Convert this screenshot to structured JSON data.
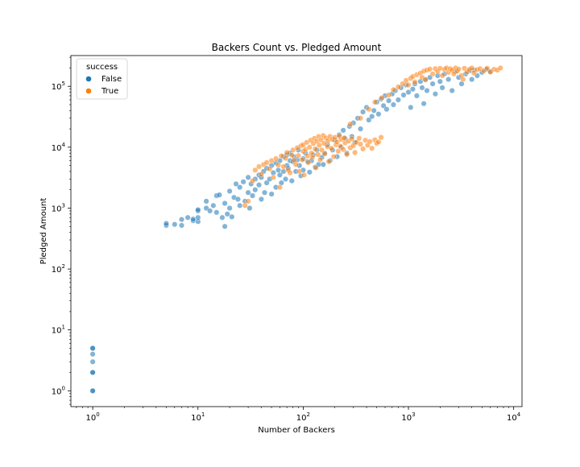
{
  "chart_data": {
    "type": "scatter",
    "title": "Backers Count vs. Pledged Amount",
    "xlabel": "Number of Backers",
    "ylabel": "Pledged Amount",
    "xscale": "log",
    "yscale": "log",
    "xlim": [
      0.62,
      12000
    ],
    "ylim": [
      0.55,
      320000
    ],
    "grid": false,
    "x_ticks": [
      {
        "value": 1,
        "base": "10",
        "exp": "0"
      },
      {
        "value": 10,
        "base": "10",
        "exp": "1"
      },
      {
        "value": 100,
        "base": "10",
        "exp": "2"
      },
      {
        "value": 1000,
        "base": "10",
        "exp": "3"
      },
      {
        "value": 10000,
        "base": "10",
        "exp": "4"
      }
    ],
    "y_ticks": [
      {
        "value": 1,
        "base": "10",
        "exp": "0"
      },
      {
        "value": 10,
        "base": "10",
        "exp": "1"
      },
      {
        "value": 100,
        "base": "10",
        "exp": "2"
      },
      {
        "value": 1000,
        "base": "10",
        "exp": "3"
      },
      {
        "value": 10000,
        "base": "10",
        "exp": "4"
      },
      {
        "value": 100000,
        "base": "10",
        "exp": "5"
      }
    ],
    "legend": {
      "title": "success",
      "placement": "top-left",
      "entries": [
        {
          "label": "False",
          "color": "#1f77b4"
        },
        {
          "label": "True",
          "color": "#ff7f0e"
        }
      ]
    },
    "series": [
      {
        "name": "False",
        "color": "#1f77b4",
        "points": [
          [
            1,
            1
          ],
          [
            1,
            1
          ],
          [
            1,
            2
          ],
          [
            1,
            2
          ],
          [
            1,
            3
          ],
          [
            1,
            4
          ],
          [
            1,
            5
          ],
          [
            1,
            5
          ],
          [
            5,
            520
          ],
          [
            5,
            560
          ],
          [
            6,
            540
          ],
          [
            7,
            520
          ],
          [
            7,
            650
          ],
          [
            8,
            700
          ],
          [
            9,
            620
          ],
          [
            9,
            660
          ],
          [
            10,
            900
          ],
          [
            10,
            940
          ],
          [
            10,
            600
          ],
          [
            10,
            700
          ],
          [
            12,
            1000
          ],
          [
            12,
            1300
          ],
          [
            13,
            900
          ],
          [
            14,
            1100
          ],
          [
            15,
            1600
          ],
          [
            15,
            850
          ],
          [
            16,
            1650
          ],
          [
            17,
            700
          ],
          [
            18,
            1200
          ],
          [
            18,
            500
          ],
          [
            19,
            800
          ],
          [
            20,
            1900
          ],
          [
            20,
            1000
          ],
          [
            21,
            720
          ],
          [
            22,
            1500
          ],
          [
            23,
            2500
          ],
          [
            24,
            1400
          ],
          [
            25,
            2200
          ],
          [
            25,
            1100
          ],
          [
            27,
            2700
          ],
          [
            28,
            1300
          ],
          [
            30,
            3200
          ],
          [
            30,
            1800
          ],
          [
            31,
            1000
          ],
          [
            32,
            2500
          ],
          [
            33,
            1600
          ],
          [
            35,
            3000
          ],
          [
            35,
            2000
          ],
          [
            38,
            3500
          ],
          [
            38,
            2400
          ],
          [
            40,
            3200
          ],
          [
            40,
            1400
          ],
          [
            42,
            4000
          ],
          [
            43,
            1800
          ],
          [
            45,
            4500
          ],
          [
            45,
            2600
          ],
          [
            48,
            3000
          ],
          [
            50,
            5000
          ],
          [
            50,
            1700
          ],
          [
            52,
            3800
          ],
          [
            55,
            5500
          ],
          [
            55,
            2200
          ],
          [
            58,
            4200
          ],
          [
            60,
            6000
          ],
          [
            60,
            3500
          ],
          [
            62,
            2600
          ],
          [
            65,
            7000
          ],
          [
            65,
            4000
          ],
          [
            68,
            3000
          ],
          [
            70,
            7500
          ],
          [
            70,
            5000
          ],
          [
            72,
            4500
          ],
          [
            75,
            8000
          ],
          [
            75,
            6000
          ],
          [
            78,
            2800
          ],
          [
            80,
            5800
          ],
          [
            82,
            7000
          ],
          [
            85,
            4000
          ],
          [
            88,
            6200
          ],
          [
            90,
            9000
          ],
          [
            92,
            5000
          ],
          [
            95,
            3400
          ],
          [
            100,
            6500
          ],
          [
            100,
            4200
          ],
          [
            105,
            8000
          ],
          [
            110,
            5800
          ],
          [
            115,
            3900
          ],
          [
            120,
            6000
          ],
          [
            125,
            7500
          ],
          [
            130,
            4700
          ],
          [
            135,
            9000
          ],
          [
            140,
            5200
          ],
          [
            150,
            6800
          ],
          [
            155,
            5200
          ],
          [
            160,
            8000
          ],
          [
            170,
            11000
          ],
          [
            180,
            6000
          ],
          [
            190,
            9000
          ],
          [
            200,
            13000
          ],
          [
            210,
            7000
          ],
          [
            220,
            16000
          ],
          [
            230,
            10000
          ],
          [
            240,
            19000
          ],
          [
            250,
            14000
          ],
          [
            260,
            8000
          ],
          [
            275,
            22000
          ],
          [
            290,
            15000
          ],
          [
            300,
            25000
          ],
          [
            310,
            12000
          ],
          [
            330,
            30000
          ],
          [
            350,
            20000
          ],
          [
            370,
            38000
          ],
          [
            400,
            45000
          ],
          [
            420,
            28000
          ],
          [
            450,
            32000
          ],
          [
            470,
            40000
          ],
          [
            500,
            55000
          ],
          [
            520,
            35000
          ],
          [
            550,
            62000
          ],
          [
            580,
            48000
          ],
          [
            600,
            70000
          ],
          [
            620,
            42000
          ],
          [
            650,
            58000
          ],
          [
            700,
            75000
          ],
          [
            720,
            50000
          ],
          [
            750,
            85000
          ],
          [
            800,
            60000
          ],
          [
            850,
            95000
          ],
          [
            900,
            72000
          ],
          [
            950,
            105000
          ],
          [
            1000,
            80000
          ],
          [
            1050,
            45000
          ],
          [
            1100,
            90000
          ],
          [
            1150,
            110000
          ],
          [
            1200,
            70000
          ],
          [
            1300,
            120000
          ],
          [
            1350,
            95000
          ],
          [
            1400,
            52000
          ],
          [
            1450,
            130000
          ],
          [
            1500,
            85000
          ],
          [
            1600,
            140000
          ],
          [
            1700,
            110000
          ],
          [
            1800,
            75000
          ],
          [
            1900,
            150000
          ],
          [
            2000,
            120000
          ],
          [
            2100,
            95000
          ],
          [
            2200,
            160000
          ],
          [
            2400,
            130000
          ],
          [
            2600,
            85000
          ],
          [
            2800,
            175000
          ],
          [
            3000,
            140000
          ],
          [
            3200,
            110000
          ],
          [
            3500,
            160000
          ],
          [
            3800,
            180000
          ],
          [
            4000,
            130000
          ],
          [
            4200,
            185000
          ],
          [
            4500,
            150000
          ],
          [
            5000,
            170000
          ],
          [
            5500,
            190000
          ],
          [
            6000,
            175000
          ]
        ]
      },
      {
        "name": "True",
        "color": "#ff7f0e",
        "points": [
          [
            28,
            1100
          ],
          [
            30,
            1300
          ],
          [
            33,
            2800
          ],
          [
            35,
            4200
          ],
          [
            38,
            4800
          ],
          [
            40,
            3600
          ],
          [
            42,
            5200
          ],
          [
            45,
            5600
          ],
          [
            48,
            4400
          ],
          [
            50,
            6000
          ],
          [
            52,
            3200
          ],
          [
            55,
            6500
          ],
          [
            58,
            5100
          ],
          [
            60,
            2200
          ],
          [
            62,
            7200
          ],
          [
            65,
            4800
          ],
          [
            68,
            6600
          ],
          [
            70,
            8200
          ],
          [
            72,
            4200
          ],
          [
            75,
            3800
          ],
          [
            78,
            7400
          ],
          [
            80,
            9000
          ],
          [
            82,
            6100
          ],
          [
            85,
            5200
          ],
          [
            88,
            9800
          ],
          [
            90,
            7300
          ],
          [
            92,
            4000
          ],
          [
            95,
            10500
          ],
          [
            98,
            6200
          ],
          [
            100,
            11000
          ],
          [
            100,
            8600
          ],
          [
            102,
            3500
          ],
          [
            105,
            9200
          ],
          [
            108,
            12000
          ],
          [
            110,
            7200
          ],
          [
            112,
            5600
          ],
          [
            115,
            10000
          ],
          [
            118,
            13000
          ],
          [
            120,
            8000
          ],
          [
            122,
            6800
          ],
          [
            125,
            11500
          ],
          [
            128,
            14000
          ],
          [
            130,
            9400
          ],
          [
            132,
            4600
          ],
          [
            135,
            12500
          ],
          [
            138,
            7600
          ],
          [
            140,
            15000
          ],
          [
            142,
            10800
          ],
          [
            145,
            6200
          ],
          [
            148,
            13200
          ],
          [
            150,
            9000
          ],
          [
            155,
            15500
          ],
          [
            158,
            11600
          ],
          [
            160,
            7800
          ],
          [
            165,
            14200
          ],
          [
            170,
            10200
          ],
          [
            172,
            12800
          ],
          [
            175,
            5800
          ],
          [
            180,
            15000
          ],
          [
            185,
            9600
          ],
          [
            190,
            13500
          ],
          [
            195,
            7000
          ],
          [
            200,
            14500
          ],
          [
            205,
            11000
          ],
          [
            210,
            12200
          ],
          [
            215,
            8600
          ],
          [
            220,
            15200
          ],
          [
            225,
            10400
          ],
          [
            230,
            13400
          ],
          [
            240,
            9200
          ],
          [
            245,
            14200
          ],
          [
            250,
            11800
          ],
          [
            260,
            7600
          ],
          [
            270,
            12600
          ],
          [
            280,
            9800
          ],
          [
            290,
            13800
          ],
          [
            300,
            10600
          ],
          [
            310,
            8200
          ],
          [
            320,
            12000
          ],
          [
            340,
            14000
          ],
          [
            350,
            11200
          ],
          [
            370,
            9400
          ],
          [
            390,
            13000
          ],
          [
            410,
            10800
          ],
          [
            430,
            12400
          ],
          [
            450,
            9600
          ],
          [
            480,
            13200
          ],
          [
            500,
            11600
          ],
          [
            520,
            12200
          ],
          [
            550,
            14500
          ],
          [
            280,
            24000
          ],
          [
            350,
            30000
          ],
          [
            420,
            42000
          ],
          [
            480,
            55000
          ],
          [
            560,
            65000
          ],
          [
            650,
            72000
          ],
          [
            720,
            88000
          ],
          [
            800,
            98000
          ],
          [
            880,
            110000
          ],
          [
            950,
            125000
          ],
          [
            1000,
            105000
          ],
          [
            1050,
            135000
          ],
          [
            1100,
            145000
          ],
          [
            1150,
            118000
          ],
          [
            1200,
            155000
          ],
          [
            1300,
            165000
          ],
          [
            1350,
            140000
          ],
          [
            1400,
            178000
          ],
          [
            1450,
            128000
          ],
          [
            1500,
            185000
          ],
          [
            1600,
            192000
          ],
          [
            1700,
            160000
          ],
          [
            1800,
            195000
          ],
          [
            1900,
            175000
          ],
          [
            2000,
            198000
          ],
          [
            2100,
            150000
          ],
          [
            2200,
            190000
          ],
          [
            2300,
            200000
          ],
          [
            2400,
            170000
          ],
          [
            2500,
            195000
          ],
          [
            2600,
            185000
          ],
          [
            2700,
            160000
          ],
          [
            2800,
            200000
          ],
          [
            2900,
            178000
          ],
          [
            3000,
            192000
          ],
          [
            3200,
            150000
          ],
          [
            3400,
            198000
          ],
          [
            3600,
            172000
          ],
          [
            3800,
            190000
          ],
          [
            4000,
            200000
          ],
          [
            4200,
            165000
          ],
          [
            4500,
            188000
          ],
          [
            4800,
            195000
          ],
          [
            5200,
            180000
          ],
          [
            5600,
            198000
          ],
          [
            6000,
            172000
          ],
          [
            6500,
            190000
          ],
          [
            7000,
            185000
          ],
          [
            7500,
            200000
          ],
          [
            3300,
            130000
          ]
        ]
      }
    ]
  }
}
